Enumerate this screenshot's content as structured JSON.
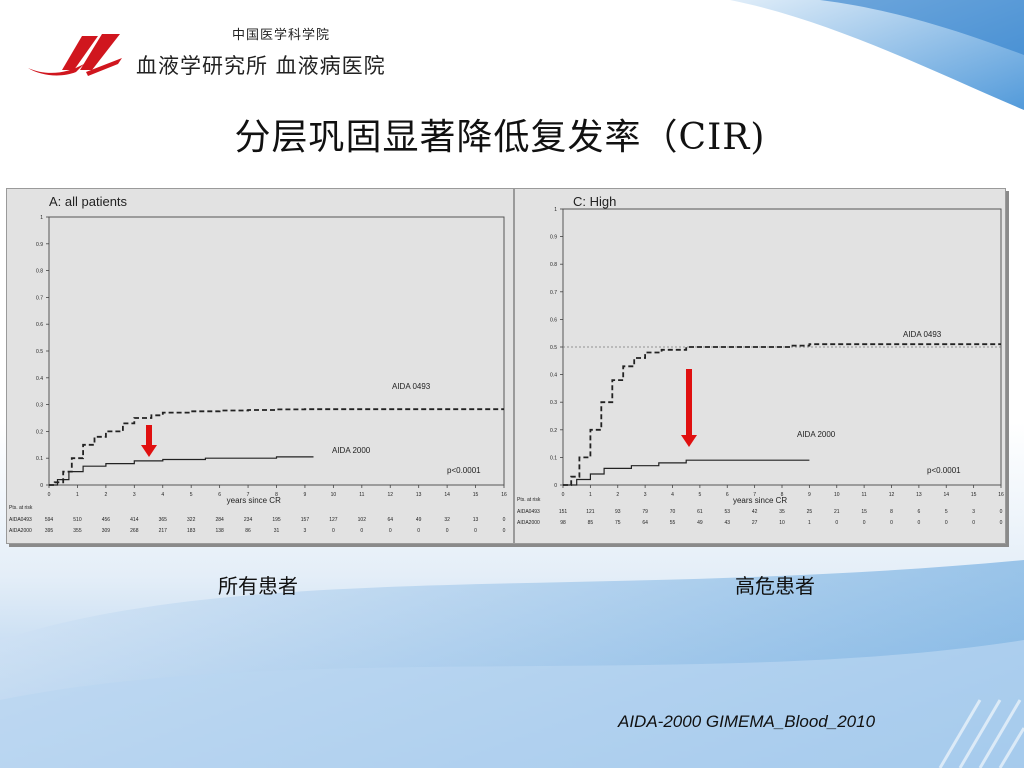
{
  "header": {
    "logo_line1": "中国医学科学院",
    "logo_line2": "血液学研究所 血液病医院"
  },
  "slide_title": "分层巩固显著降低复发率（CIR)",
  "captions": {
    "left": "所有患者",
    "right": "高危患者"
  },
  "citation": "AIDA-2000 GIMEMA_Blood_2010",
  "colors": {
    "arrow": "#e01010",
    "panel_bg": "#e2e2e2",
    "line": "#333333"
  },
  "chart_data": [
    {
      "type": "line",
      "title": "A: all patients",
      "xlabel": "years since CR",
      "ylabel": "",
      "xlim": [
        0,
        16
      ],
      "ylim": [
        0,
        1
      ],
      "x_ticks": [
        0,
        1,
        2,
        3,
        4,
        5,
        6,
        7,
        8,
        9,
        10,
        11,
        12,
        13,
        14,
        15,
        16
      ],
      "y_ticks": [
        0,
        0.1,
        0.2,
        0.3,
        0.4,
        0.5,
        0.6,
        0.7,
        0.8,
        0.9,
        1
      ],
      "annotation": "p<0.0001",
      "series": [
        {
          "name": "AIDA 0493",
          "style": "dashed",
          "points": [
            [
              0,
              0
            ],
            [
              0.2,
              0.01
            ],
            [
              0.5,
              0.05
            ],
            [
              0.8,
              0.1
            ],
            [
              1.2,
              0.15
            ],
            [
              1.6,
              0.18
            ],
            [
              2,
              0.2
            ],
            [
              2.6,
              0.23
            ],
            [
              3,
              0.25
            ],
            [
              3.6,
              0.26
            ],
            [
              4,
              0.27
            ],
            [
              5,
              0.275
            ],
            [
              6,
              0.278
            ],
            [
              7,
              0.28
            ],
            [
              8,
              0.282
            ],
            [
              9,
              0.283
            ],
            [
              12,
              0.283
            ],
            [
              16,
              0.283
            ]
          ]
        },
        {
          "name": "AIDA 2000",
          "style": "solid",
          "points": [
            [
              0,
              0
            ],
            [
              0.3,
              0.02
            ],
            [
              0.7,
              0.05
            ],
            [
              1.2,
              0.07
            ],
            [
              2,
              0.08
            ],
            [
              3,
              0.09
            ],
            [
              4,
              0.095
            ],
            [
              5.5,
              0.1
            ],
            [
              6,
              0.1
            ],
            [
              8,
              0.105
            ],
            [
              9.3,
              0.105
            ]
          ]
        }
      ],
      "risk_table": {
        "label": "Pts. at risk",
        "rows": [
          {
            "name": "AIDA0493",
            "values": [
              "594",
              "510",
              "456",
              "414",
              "365",
              "322",
              "284",
              "234",
              "195",
              "157",
              "127",
              "102",
              "64",
              "49",
              "32",
              "13",
              "0"
            ]
          },
          {
            "name": "AIDA2000",
            "values": [
              "395",
              "355",
              "309",
              "268",
              "217",
              "183",
              "138",
              "86",
              "31",
              "3",
              "0",
              "0",
              "0",
              "0",
              "0",
              "0",
              "0"
            ]
          }
        ]
      }
    },
    {
      "type": "line",
      "title": "C: High",
      "xlabel": "years since CR",
      "ylabel": "",
      "xlim": [
        0,
        16
      ],
      "ylim": [
        0,
        1
      ],
      "x_ticks": [
        0,
        1,
        2,
        3,
        4,
        5,
        6,
        7,
        8,
        9,
        10,
        11,
        12,
        13,
        14,
        15,
        16
      ],
      "y_ticks": [
        0,
        0.1,
        0.2,
        0.3,
        0.4,
        0.5,
        0.6,
        0.7,
        0.8,
        0.9,
        1
      ],
      "annotation": "p<0.0001",
      "series": [
        {
          "name": "AIDA 0493",
          "style": "dashed",
          "points": [
            [
              0,
              0
            ],
            [
              0.3,
              0.03
            ],
            [
              0.6,
              0.1
            ],
            [
              1,
              0.2
            ],
            [
              1.4,
              0.3
            ],
            [
              1.8,
              0.38
            ],
            [
              2.2,
              0.43
            ],
            [
              2.6,
              0.46
            ],
            [
              3,
              0.48
            ],
            [
              3.6,
              0.49
            ],
            [
              4.5,
              0.5
            ],
            [
              6,
              0.5
            ],
            [
              8.3,
              0.505
            ],
            [
              9,
              0.51
            ],
            [
              12,
              0.51
            ],
            [
              16,
              0.51
            ]
          ]
        },
        {
          "name": "AIDA 2000",
          "style": "solid",
          "points": [
            [
              0,
              0
            ],
            [
              0.5,
              0.02
            ],
            [
              1,
              0.04
            ],
            [
              1.5,
              0.06
            ],
            [
              2.5,
              0.07
            ],
            [
              3.5,
              0.08
            ],
            [
              4.5,
              0.09
            ],
            [
              6,
              0.09
            ],
            [
              9,
              0.09
            ]
          ]
        }
      ],
      "risk_table": {
        "label": "Pts. at risk",
        "rows": [
          {
            "name": "AIDA0493",
            "values": [
              "151",
              "121",
              "93",
              "79",
              "70",
              "61",
              "53",
              "42",
              "35",
              "25",
              "21",
              "15",
              "8",
              "6",
              "5",
              "3",
              "0"
            ]
          },
          {
            "name": "AIDA2000",
            "values": [
              "98",
              "85",
              "75",
              "64",
              "55",
              "49",
              "43",
              "27",
              "10",
              "1",
              "0",
              "0",
              "0",
              "0",
              "0",
              "0",
              "0"
            ]
          }
        ]
      }
    }
  ]
}
